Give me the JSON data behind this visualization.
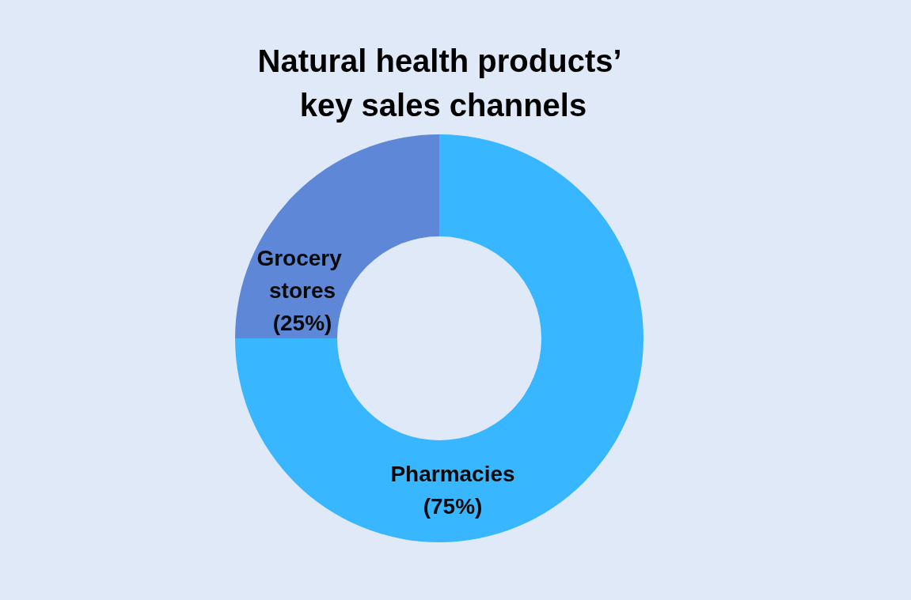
{
  "chart_data": {
    "type": "donut",
    "title": "Natural health products’ key sales channels",
    "categories": [
      "Pharmacies",
      "Grocery stores"
    ],
    "values": [
      75,
      25
    ],
    "colors": [
      "#38b6ff",
      "#5e87d7"
    ],
    "value_labels": [
      "(75%)",
      "(25%)"
    ],
    "legend": false
  }
}
